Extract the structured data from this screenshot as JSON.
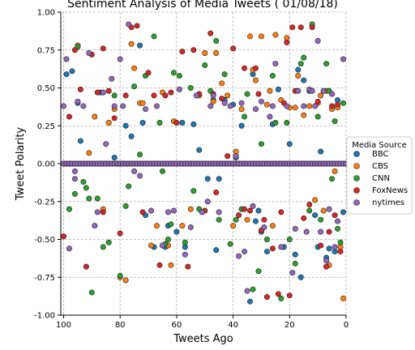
{
  "chart_data": {
    "type": "scatter",
    "title": "Sentiment Analysis of Media Tweets ( 01/08/18)",
    "xlabel": "Tweets Ago",
    "ylabel": "Tweet Polarity",
    "xlim": [
      101,
      0
    ],
    "ylim": [
      -1.0,
      1.0
    ],
    "xticks": [
      100,
      80,
      60,
      40,
      20,
      0
    ],
    "xtick_labels": [
      "100",
      "80",
      "60",
      "40",
      "20",
      "0"
    ],
    "yticks": [
      -1.0,
      -0.75,
      -0.5,
      -0.25,
      0.0,
      0.25,
      0.5,
      0.75,
      1.0
    ],
    "ytick_labels": [
      "-1.00",
      "-0.75",
      "-0.50",
      "-0.25",
      "0.00",
      "0.25",
      "0.50",
      "0.75",
      "1.00"
    ],
    "grid": true,
    "grid_style": "dashed",
    "legend": {
      "title": "Media Source",
      "placement": "outside-right"
    },
    "series": [
      {
        "name": "BBC",
        "color": "#1f77b4",
        "points": [
          [
            99,
            0.59
          ],
          [
            97,
            0.61
          ],
          [
            95,
            0.4
          ],
          [
            94,
            0.15
          ],
          [
            82,
            0.04
          ],
          [
            78,
            0.25
          ],
          [
            76,
            0.18
          ],
          [
            73,
            0.78
          ],
          [
            72,
            0.27
          ],
          [
            71,
            -0.34
          ],
          [
            68,
            -0.55
          ],
          [
            64,
            -0.55
          ],
          [
            63,
            -0.41
          ],
          [
            60,
            -0.45
          ],
          [
            57,
            -0.55
          ],
          [
            54,
            0.26
          ],
          [
            52,
            0.09
          ],
          [
            49,
            -0.1
          ],
          [
            47,
            0.42
          ],
          [
            46,
            -0.57
          ],
          [
            45,
            -0.1
          ],
          [
            43,
            0.42
          ],
          [
            40,
            0.39
          ],
          [
            39,
            0.04
          ],
          [
            37,
            0.25
          ],
          [
            34,
            -0.91
          ],
          [
            33,
            0.59
          ],
          [
            32,
            -0.38
          ],
          [
            31,
            -0.31
          ],
          [
            30,
            -0.45
          ],
          [
            28,
            -0.58
          ],
          [
            26,
            0.26
          ],
          [
            24,
            0.49
          ],
          [
            22,
            -0.55
          ],
          [
            20,
            0.13
          ],
          [
            18,
            -0.6
          ],
          [
            17,
            0.62
          ],
          [
            16,
            -0.75
          ],
          [
            15,
            0.55
          ],
          [
            13,
            0.48
          ],
          [
            11,
            -0.34
          ],
          [
            10,
            -0.55
          ],
          [
            9,
            0.08
          ],
          [
            7,
            -0.62
          ],
          [
            6,
            -0.56
          ],
          [
            4,
            -0.58
          ],
          [
            1,
            -0.32
          ],
          [
            3,
            0.42
          ],
          [
            58,
            0.27
          ],
          [
            87,
            0.47
          ]
        ]
      },
      {
        "name": "CBS",
        "color": "#ff7f0e",
        "points": [
          [
            95,
            0.78
          ],
          [
            91,
            0.07
          ],
          [
            86,
            -0.3
          ],
          [
            84,
            0.27
          ],
          [
            82,
            0.36
          ],
          [
            78,
            -0.77
          ],
          [
            76,
            0.79
          ],
          [
            75,
            0.63
          ],
          [
            73,
            0.4
          ],
          [
            72,
            0.4
          ],
          [
            69,
            -0.54
          ],
          [
            67,
            -0.41
          ],
          [
            65,
            0.47
          ],
          [
            63,
            -0.54
          ],
          [
            61,
            0.28
          ],
          [
            58,
            -0.41
          ],
          [
            55,
            -0.3
          ],
          [
            52,
            0.45
          ],
          [
            50,
            0.73
          ],
          [
            47,
            0.41
          ],
          [
            46,
            0.73
          ],
          [
            44,
            0.53
          ],
          [
            42,
            0.45
          ],
          [
            40,
            -0.41
          ],
          [
            39,
            0.08
          ],
          [
            37,
            0.36
          ],
          [
            35,
            -0.37
          ],
          [
            34,
            0.84
          ],
          [
            33,
            0.62
          ],
          [
            32,
            0.55
          ],
          [
            30,
            0.84
          ],
          [
            28,
            0.39
          ],
          [
            27,
            0.48
          ],
          [
            26,
            -0.41
          ],
          [
            25,
            0.85
          ],
          [
            23,
            0.42
          ],
          [
            21,
            0.83
          ],
          [
            20,
            0.37
          ],
          [
            18,
            0.37
          ],
          [
            17,
            0.58
          ],
          [
            15,
            0.32
          ],
          [
            13,
            0.38
          ],
          [
            11,
            -0.24
          ],
          [
            10,
            0.4
          ],
          [
            9,
            0.45
          ],
          [
            8,
            -0.31
          ],
          [
            7,
            0.48
          ],
          [
            6,
            -0.67
          ],
          [
            5,
            0.36
          ],
          [
            4,
            -0.05
          ],
          [
            3,
            0.37
          ],
          [
            1,
            -0.89
          ],
          [
            2,
            -0.55
          ],
          [
            89,
            0.31
          ],
          [
            80,
            -0.75
          ],
          [
            62,
            -0.67
          ]
        ]
      },
      {
        "name": "CNN",
        "color": "#2ca02c",
        "points": [
          [
            98,
            -0.3
          ],
          [
            96,
            -0.2
          ],
          [
            95,
            0.77
          ],
          [
            93,
            -0.12
          ],
          [
            92,
            -0.16
          ],
          [
            91,
            -0.23
          ],
          [
            90,
            -0.85
          ],
          [
            88,
            -0.23
          ],
          [
            86,
            -0.55
          ],
          [
            84,
            -0.52
          ],
          [
            82,
            0.45
          ],
          [
            80,
            -0.74
          ],
          [
            78,
            -0.28
          ],
          [
            77,
            -0.15
          ],
          [
            75,
            0.51
          ],
          [
            73,
            0.06
          ],
          [
            71,
            0.58
          ],
          [
            68,
            0.84
          ],
          [
            66,
            0.27
          ],
          [
            65,
            -0.05
          ],
          [
            63,
            -0.5
          ],
          [
            62,
            -0.4
          ],
          [
            61,
            0.6
          ],
          [
            59,
            0.58
          ],
          [
            57,
            -0.52
          ],
          [
            55,
            0.5
          ],
          [
            54,
            -0.18
          ],
          [
            52,
            -0.3
          ],
          [
            50,
            0.65
          ],
          [
            48,
            0.48
          ],
          [
            46,
            0.81
          ],
          [
            45,
            -0.37
          ],
          [
            43,
            0.59
          ],
          [
            41,
            -0.53
          ],
          [
            39,
            -0.37
          ],
          [
            37,
            -0.3
          ],
          [
            35,
            0.46
          ],
          [
            33,
            -0.83
          ],
          [
            31,
            -0.71
          ],
          [
            30,
            0.13
          ],
          [
            28,
            -0.5
          ],
          [
            26,
            0.58
          ],
          [
            25,
            0.27
          ],
          [
            23,
            -0.89
          ],
          [
            21,
            0.27
          ],
          [
            20,
            -0.5
          ],
          [
            18,
            -0.66
          ],
          [
            16,
            0.66
          ],
          [
            15,
            0.7
          ],
          [
            13,
            -0.31
          ],
          [
            12,
            0.92
          ],
          [
            10,
            0.31
          ],
          [
            9,
            -0.37
          ],
          [
            7,
            0.66
          ],
          [
            6,
            0.48
          ],
          [
            5,
            -0.1
          ],
          [
            4,
            0.28
          ],
          [
            2,
            -0.52
          ],
          [
            1,
            0.4
          ],
          [
            3,
            -0.43
          ],
          [
            64,
            -0.53
          ],
          [
            36,
            0.31
          ]
        ]
      },
      {
        "name": "FoxNews",
        "color": "#d62728",
        "points": [
          [
            100,
            -0.48
          ],
          [
            98,
            0.31
          ],
          [
            96,
            0.75
          ],
          [
            94,
            0.49
          ],
          [
            92,
            -0.68
          ],
          [
            90,
            0.72
          ],
          [
            88,
            0.47
          ],
          [
            86,
            -0.32
          ],
          [
            84,
            0.48
          ],
          [
            82,
            0.3
          ],
          [
            80,
            -0.46
          ],
          [
            78,
            0.45
          ],
          [
            76,
            0.9
          ],
          [
            74,
            0.91
          ],
          [
            72,
            -0.32
          ],
          [
            70,
            0.6
          ],
          [
            68,
            0.45
          ],
          [
            66,
            -0.67
          ],
          [
            64,
            0.45
          ],
          [
            62,
            0.47
          ],
          [
            60,
            0.27
          ],
          [
            58,
            0.74
          ],
          [
            56,
            -0.68
          ],
          [
            54,
            0.75
          ],
          [
            52,
            0.46
          ],
          [
            50,
            -0.31
          ],
          [
            48,
            0.86
          ],
          [
            47,
            0.46
          ],
          [
            46,
            -0.19
          ],
          [
            44,
            0.43
          ],
          [
            42,
            0.05
          ],
          [
            40,
            0.76
          ],
          [
            38,
            -0.34
          ],
          [
            36,
            -0.3
          ],
          [
            34,
            -0.31
          ],
          [
            32,
            0.63
          ],
          [
            31,
            0.46
          ],
          [
            30,
            -0.44
          ],
          [
            29,
            -0.37
          ],
          [
            28,
            -0.88
          ],
          [
            26,
            -0.56
          ],
          [
            24,
            -0.86
          ],
          [
            23,
            -0.32
          ],
          [
            22,
            0.4
          ],
          [
            21,
            0.8
          ],
          [
            20,
            -0.87
          ],
          [
            19,
            0.9
          ],
          [
            18,
            0.48
          ],
          [
            16,
            0.9
          ],
          [
            15,
            -0.36
          ],
          [
            13,
            -0.27
          ],
          [
            12,
            0.9
          ],
          [
            10,
            0.41
          ],
          [
            9,
            -0.54
          ],
          [
            7,
            -0.68
          ],
          [
            6,
            -0.45
          ],
          [
            5,
            0.38
          ],
          [
            3,
            0.39
          ],
          [
            2,
            -0.58
          ],
          [
            4,
            -0.34
          ],
          [
            86,
            0.76
          ],
          [
            36,
            0.63
          ]
        ]
      },
      {
        "name": "nytimes",
        "color": "#9467bd",
        "points": [
          [
            100,
            0.38
          ],
          [
            99,
            0.69
          ],
          [
            98,
            -0.56
          ],
          [
            96,
            -0.05
          ],
          [
            95,
            0.41
          ],
          [
            93,
            0.38
          ],
          [
            91,
            0.73
          ],
          [
            89,
            -0.41
          ],
          [
            88,
            -0.32
          ],
          [
            86,
            0.47
          ],
          [
            85,
            0.13
          ],
          [
            83,
            0.56
          ],
          [
            82,
            0.38
          ],
          [
            80,
            0.69
          ],
          [
            79,
            0.38
          ],
          [
            77,
            0.92
          ],
          [
            75,
            -0.05
          ],
          [
            73,
            -0.08
          ],
          [
            71,
            0.36
          ],
          [
            69,
            -0.31
          ],
          [
            67,
            0.38
          ],
          [
            65,
            -0.54
          ],
          [
            63,
            -0.32
          ],
          [
            61,
            -0.31
          ],
          [
            59,
            0.49
          ],
          [
            57,
            -0.6
          ],
          [
            55,
            -0.42
          ],
          [
            53,
            0.45
          ],
          [
            51,
            -0.32
          ],
          [
            49,
            -0.25
          ],
          [
            48,
            0.38
          ],
          [
            47,
            0.45
          ],
          [
            45,
            -0.32
          ],
          [
            43,
            0.4
          ],
          [
            41,
            0.38
          ],
          [
            39,
            0.05
          ],
          [
            38,
            -0.61
          ],
          [
            37,
            0.4
          ],
          [
            36,
            -0.58
          ],
          [
            35,
            -0.84
          ],
          [
            33,
            -0.28
          ],
          [
            32,
            0.36
          ],
          [
            30,
            0.41
          ],
          [
            29,
            -0.42
          ],
          [
            27,
            0.31
          ],
          [
            26,
            0.38
          ],
          [
            25,
            0.66
          ],
          [
            23,
            -0.55
          ],
          [
            21,
            0.38
          ],
          [
            19,
            -0.72
          ],
          [
            18,
            -0.43
          ],
          [
            17,
            0.48
          ],
          [
            15,
            0.38
          ],
          [
            14,
            -0.45
          ],
          [
            13,
            0.49
          ],
          [
            12,
            0.48
          ],
          [
            11,
            0.38
          ],
          [
            10,
            0.81
          ],
          [
            9,
            -0.45
          ],
          [
            8,
            0.48
          ],
          [
            7,
            -0.64
          ],
          [
            6,
            -0.3
          ],
          [
            5,
            0.46
          ],
          [
            4,
            -0.55
          ],
          [
            3,
            -0.38
          ],
          [
            1,
            0.69
          ],
          [
            96,
            -0.1
          ]
        ]
      }
    ],
    "zero_cluster_x": [
      100,
      99,
      98,
      97,
      96,
      95,
      94,
      93,
      92,
      91,
      90,
      89,
      88,
      87,
      86,
      85,
      84,
      83,
      82,
      81,
      80,
      79,
      78,
      77,
      76,
      75,
      74,
      73,
      72,
      71,
      70,
      69,
      68,
      67,
      66,
      65,
      64,
      63,
      62,
      61,
      60,
      59,
      58,
      57,
      56,
      55,
      54,
      53,
      52,
      51,
      50,
      49,
      48,
      47,
      46,
      45,
      44,
      43,
      42,
      41,
      40,
      39,
      38,
      37,
      36,
      35,
      34,
      33,
      32,
      31,
      30,
      29,
      28,
      27,
      26,
      25,
      24,
      23,
      22,
      21,
      20,
      19,
      18,
      17,
      16,
      15,
      14,
      13,
      12,
      11,
      10,
      9,
      8,
      7,
      6,
      5,
      4,
      3,
      2,
      1,
      0
    ]
  }
}
